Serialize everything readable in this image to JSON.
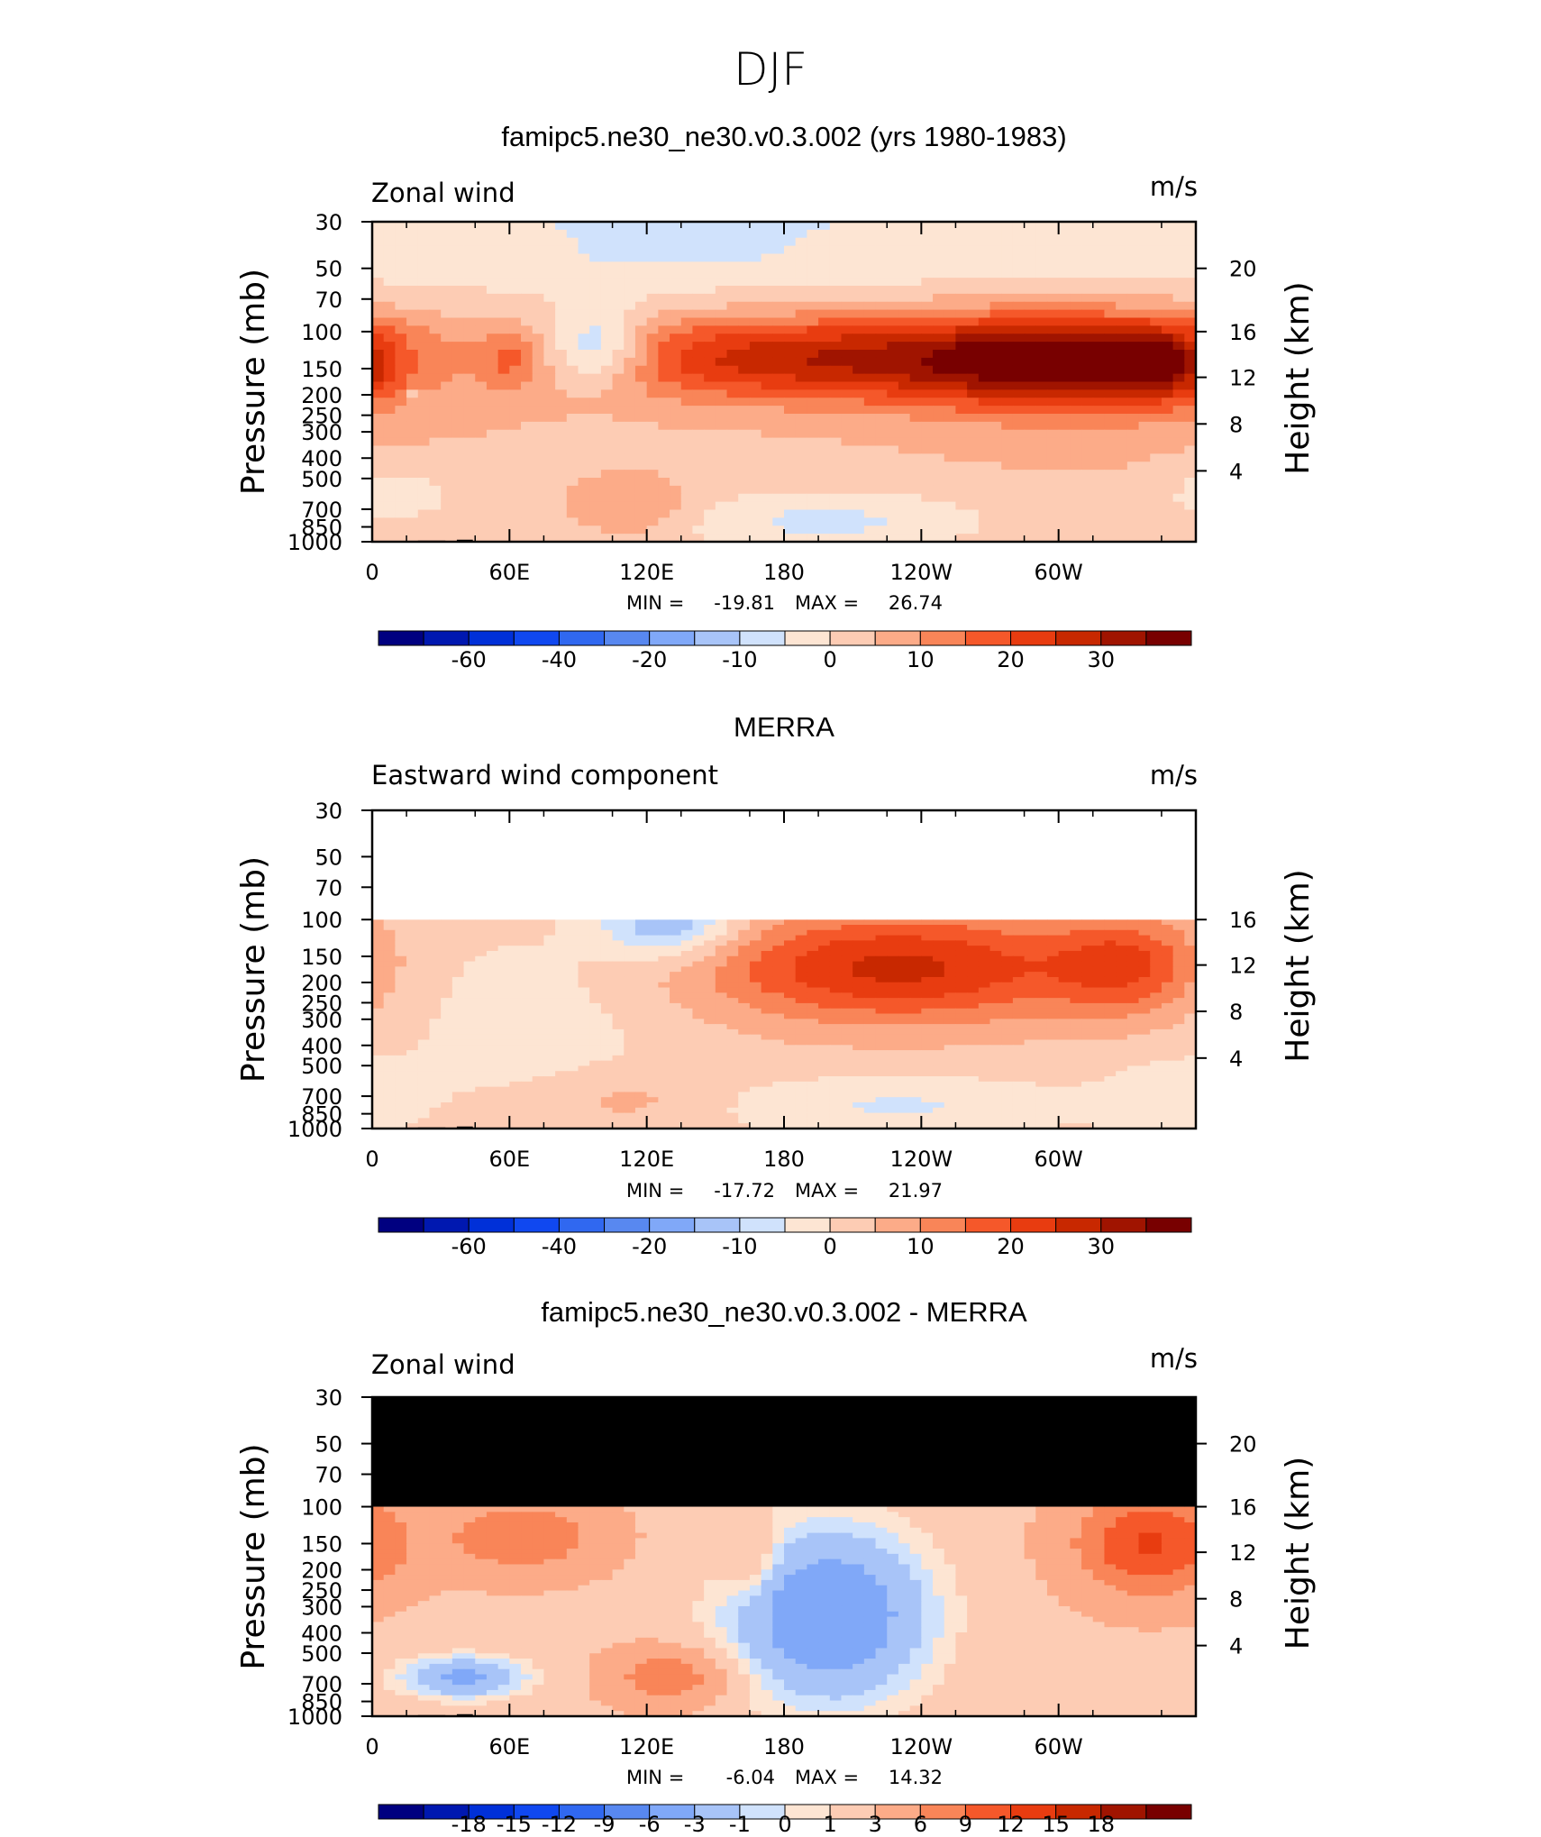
{
  "page_title": "DJF",
  "chart_data": [
    {
      "type": "heatmap",
      "title": "famipc5.ne30_ne30.v0.3.002 (yrs 1980-1983)",
      "field_label": "Zonal wind",
      "units": "m/s",
      "ylabel": "Pressure (mb)",
      "y2label": "Height (km)",
      "x_ticks": [
        "0",
        "60E",
        "120E",
        "180",
        "120W",
        "60W"
      ],
      "y_ticks": [
        30,
        50,
        70,
        100,
        150,
        200,
        250,
        300,
        400,
        500,
        700,
        850,
        1000
      ],
      "y2_ticks": [
        "20",
        "16",
        "12",
        "8",
        "4"
      ],
      "min_label": "MIN =",
      "min": "-19.81",
      "max_label": "MAX =",
      "max": "26.74",
      "levels": [
        "-60",
        "-40",
        "-20",
        "-10",
        "0",
        "10",
        "20",
        "30"
      ],
      "colors": [
        "#000080",
        "#0018b0",
        "#0030d8",
        "#1048f0",
        "#3068f0",
        "#5888f0",
        "#80a8f8",
        "#a8c4f8",
        "#d0e2fc",
        "#fde5d3",
        "#fdccb4",
        "#fcab88",
        "#f98558",
        "#f5582a",
        "#e83c10",
        "#c82800",
        "#a01400",
        "#780000"
      ],
      "fields": [
        {
          "lon": 190,
          "p": 135,
          "rx": 100,
          "ry": 0.46,
          "amp": 24.5
        },
        {
          "lon": 302,
          "p": 140,
          "rx": 62,
          "ry": 0.5,
          "amp": 29
        },
        {
          "lon": 346,
          "p": 140,
          "rx": 24,
          "ry": 0.42,
          "amp": 15
        },
        {
          "lon": 318,
          "p": 130,
          "rx": 120,
          "ry": 1.6,
          "amp": 3
        },
        {
          "lon": 98,
          "p": 120,
          "rx": 23,
          "ry": 0.42,
          "amp": -19.81
        },
        {
          "lon": 60,
          "p": 135,
          "rx": 11,
          "ry": 0.3,
          "amp": 7.5
        },
        {
          "lon": 115,
          "p": 680,
          "rx": 25,
          "ry": 0.3,
          "amp": 8
        },
        {
          "lon": 200,
          "p": 800,
          "rx": 70,
          "ry": 0.35,
          "amp": -10
        },
        {
          "lon": 10,
          "p": 600,
          "rx": 28,
          "ry": 0.35,
          "amp": -7
        },
        {
          "lon": 18,
          "p": 200,
          "rx": 4,
          "ry": 0.1,
          "amp": -9
        }
      ],
      "base": 3.5,
      "strat_amp": -9,
      "data_top": 30
    },
    {
      "type": "heatmap",
      "title": "MERRA",
      "field_label": "Eastward wind component",
      "units": "m/s",
      "ylabel": "Pressure (mb)",
      "y2label": "Height (km)",
      "x_ticks": [
        "0",
        "60E",
        "120E",
        "180",
        "120W",
        "60W"
      ],
      "y_ticks": [
        30,
        50,
        70,
        100,
        150,
        200,
        250,
        300,
        400,
        500,
        700,
        850,
        1000
      ],
      "y2_ticks": [
        "16",
        "12",
        "8",
        "4"
      ],
      "min_label": "MIN =",
      "min": "-17.72",
      "max_label": "MAX =",
      "max": "21.97",
      "levels": [
        "-60",
        "-40",
        "-20",
        "-10",
        "0",
        "10",
        "20",
        "30"
      ],
      "colors": [
        "#000080",
        "#0018b0",
        "#0030d8",
        "#1048f0",
        "#3068f0",
        "#5888f0",
        "#80a8f8",
        "#a8c4f8",
        "#d0e2fc",
        "#fde5d3",
        "#fdccb4",
        "#fcab88",
        "#f98558",
        "#f5582a",
        "#e83c10",
        "#c82800",
        "#a01400",
        "#780000"
      ],
      "fields": [
        {
          "lon": 230,
          "p": 170,
          "rx": 85,
          "ry": 0.6,
          "amp": 24
        },
        {
          "lon": 330,
          "p": 165,
          "rx": 32,
          "ry": 0.55,
          "amp": 15
        },
        {
          "lon": 130,
          "p": 105,
          "rx": 30,
          "ry": 0.38,
          "amp": -17.72
        },
        {
          "lon": 70,
          "p": 300,
          "rx": 60,
          "ry": 1.1,
          "amp": -5
        },
        {
          "lon": 110,
          "p": 730,
          "rx": 40,
          "ry": 0.3,
          "amp": 5.5
        },
        {
          "lon": 230,
          "p": 780,
          "rx": 80,
          "ry": 0.32,
          "amp": -8
        },
        {
          "lon": 350,
          "p": 700,
          "rx": 30,
          "ry": 0.4,
          "amp": -6
        }
      ],
      "base": 2.5,
      "strat_amp": 0,
      "data_top": 100
    },
    {
      "type": "heatmap",
      "title": "famipc5.ne30_ne30.v0.3.002 - MERRA",
      "field_label": "Zonal wind",
      "units": "m/s",
      "ylabel": "Pressure (mb)",
      "y2label": "Height (km)",
      "x_ticks": [
        "0",
        "60E",
        "120E",
        "180",
        "120W",
        "60W"
      ],
      "y_ticks": [
        30,
        50,
        70,
        100,
        150,
        200,
        250,
        300,
        400,
        500,
        700,
        850,
        1000
      ],
      "y2_ticks": [
        "20",
        "16",
        "12",
        "8",
        "4"
      ],
      "min_label": "MIN =",
      "min": "-6.04",
      "max_label": "MAX =",
      "max": "14.32",
      "levels": [
        "-18",
        "-15",
        "-12",
        "-9",
        "-6",
        "-3",
        "-1",
        "0",
        "1",
        "3",
        "6",
        "9",
        "12",
        "15",
        "18"
      ],
      "colors": [
        "#000080",
        "#0018b0",
        "#0030d8",
        "#1048f0",
        "#3068f0",
        "#5888f0",
        "#80a8f8",
        "#a8c4f8",
        "#d0e2fc",
        "#fde5d3",
        "#fdccb4",
        "#fcab88",
        "#f98558",
        "#f5582a",
        "#e83c10",
        "#c82800",
        "#a01400",
        "#780000"
      ],
      "fields": [
        {
          "lon": 65,
          "p": 140,
          "rx": 35,
          "ry": 0.4,
          "amp": 6
        },
        {
          "lon": 340,
          "p": 150,
          "rx": 32,
          "ry": 0.55,
          "amp": 10
        },
        {
          "lon": 200,
          "p": 330,
          "rx": 45,
          "ry": 1.0,
          "amp": -8
        },
        {
          "lon": 165,
          "p": 180,
          "rx": 12,
          "ry": 0.35,
          "amp": 3
        },
        {
          "lon": 130,
          "p": 650,
          "rx": 25,
          "ry": 0.3,
          "amp": 6
        },
        {
          "lon": 40,
          "p": 650,
          "rx": 30,
          "ry": 0.25,
          "amp": -6
        }
      ],
      "base": 2.5,
      "strat_amp": 0,
      "data_top": 100
    }
  ]
}
